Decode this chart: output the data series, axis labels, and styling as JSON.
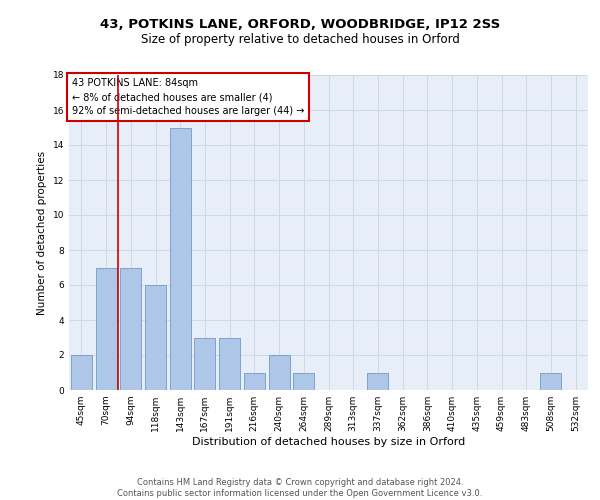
{
  "title1": "43, POTKINS LANE, ORFORD, WOODBRIDGE, IP12 2SS",
  "title2": "Size of property relative to detached houses in Orford",
  "xlabel": "Distribution of detached houses by size in Orford",
  "ylabel": "Number of detached properties",
  "categories": [
    "45sqm",
    "70sqm",
    "94sqm",
    "118sqm",
    "143sqm",
    "167sqm",
    "191sqm",
    "216sqm",
    "240sqm",
    "264sqm",
    "289sqm",
    "313sqm",
    "337sqm",
    "362sqm",
    "386sqm",
    "410sqm",
    "435sqm",
    "459sqm",
    "483sqm",
    "508sqm",
    "532sqm"
  ],
  "values": [
    2,
    7,
    7,
    6,
    15,
    3,
    3,
    1,
    2,
    1,
    0,
    0,
    1,
    0,
    0,
    0,
    0,
    0,
    0,
    1,
    0
  ],
  "bar_color": "#aec6e8",
  "bar_edge_color": "#5a8fc2",
  "vline_x": 1.5,
  "vline_color": "#cc0000",
  "annotation_lines": [
    "43 POTKINS LANE: 84sqm",
    "← 8% of detached houses are smaller (4)",
    "92% of semi-detached houses are larger (44) →"
  ],
  "annotation_box_color": "#cc0000",
  "ylim": [
    0,
    18
  ],
  "yticks": [
    0,
    2,
    4,
    6,
    8,
    10,
    12,
    14,
    16,
    18
  ],
  "grid_color": "#d0d8e8",
  "bg_color": "#e8eef8",
  "footer": "Contains HM Land Registry data © Crown copyright and database right 2024.\nContains public sector information licensed under the Open Government Licence v3.0.",
  "title1_fontsize": 9.5,
  "title2_fontsize": 8.5,
  "xlabel_fontsize": 8,
  "ylabel_fontsize": 7.5,
  "tick_fontsize": 6.5,
  "annotation_fontsize": 7,
  "footer_fontsize": 6
}
